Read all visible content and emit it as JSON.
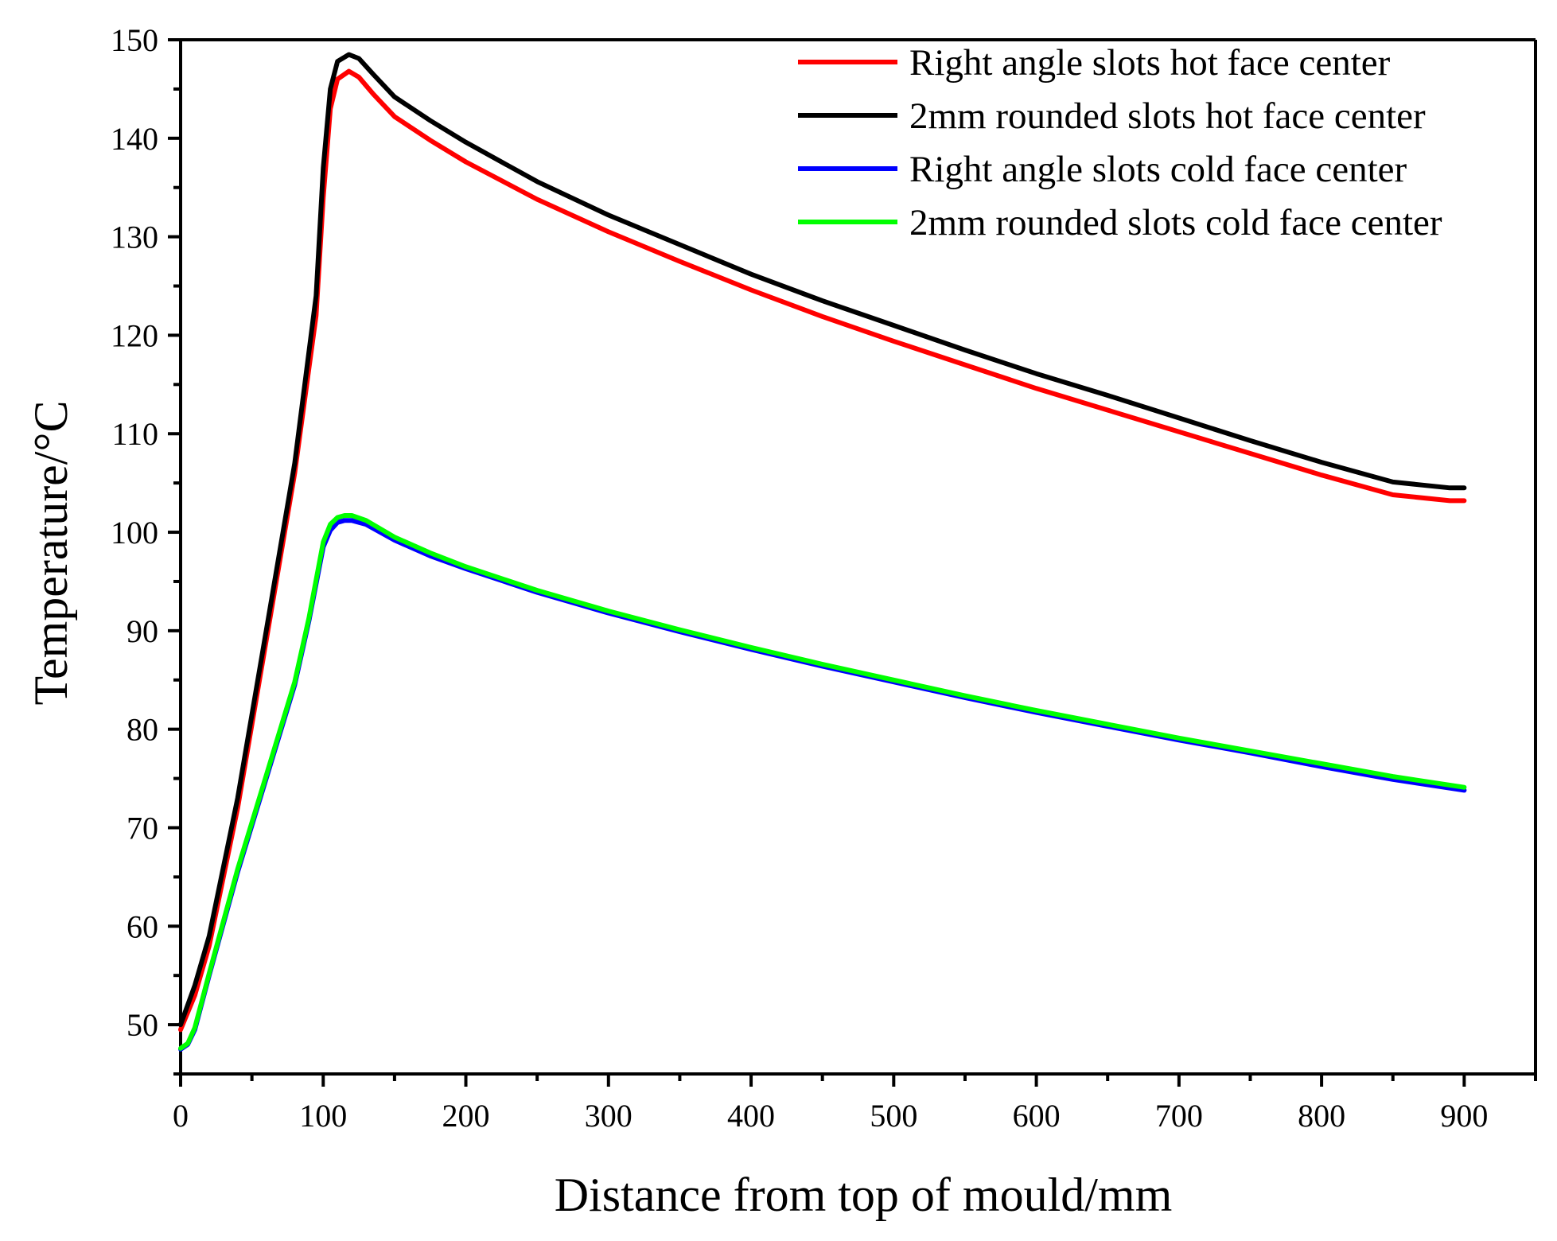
{
  "chart_data": {
    "type": "line",
    "title": "",
    "xlabel": "Distance from top of mould/mm",
    "ylabel": "Temperature/°C",
    "xlim": [
      0,
      950
    ],
    "ylim": [
      45,
      150
    ],
    "xticks": [
      0,
      100,
      200,
      300,
      400,
      500,
      600,
      700,
      800,
      900
    ],
    "yticks": [
      50,
      60,
      70,
      80,
      90,
      100,
      110,
      120,
      130,
      140,
      150
    ],
    "grid": false,
    "legend_position": "top-right",
    "series": [
      {
        "name": "Right angle slots hot face center",
        "color": "#ff0000",
        "x": [
          0,
          10,
          20,
          40,
          60,
          80,
          95,
          100,
          105,
          110,
          118,
          125,
          135,
          150,
          175,
          200,
          250,
          300,
          350,
          400,
          450,
          500,
          550,
          600,
          650,
          700,
          750,
          800,
          850,
          890,
          900
        ],
        "y": [
          49.5,
          53,
          58,
          72,
          89,
          106,
          122,
          134,
          143,
          146,
          146.8,
          146.2,
          144.5,
          142.2,
          139.8,
          137.6,
          133.8,
          130.5,
          127.5,
          124.6,
          121.9,
          119.4,
          117,
          114.6,
          112.4,
          110.2,
          108,
          105.8,
          103.8,
          103.2,
          103.2
        ]
      },
      {
        "name": "2mm rounded slots hot face center",
        "color": "#000000",
        "x": [
          0,
          10,
          20,
          40,
          60,
          80,
          95,
          100,
          105,
          110,
          118,
          125,
          135,
          150,
          175,
          200,
          250,
          300,
          350,
          400,
          450,
          500,
          550,
          600,
          650,
          700,
          750,
          800,
          850,
          890,
          900
        ],
        "y": [
          50,
          54,
          59,
          73,
          90,
          107,
          124,
          137,
          145,
          147.8,
          148.5,
          148.1,
          146.5,
          144.2,
          141.8,
          139.6,
          135.6,
          132.2,
          129.2,
          126.2,
          123.5,
          121,
          118.5,
          116.1,
          113.9,
          111.6,
          109.3,
          107.1,
          105.1,
          104.5,
          104.5
        ]
      },
      {
        "name": "Right angle slots cold face center",
        "color": "#0000ff",
        "x": [
          0,
          5,
          10,
          20,
          40,
          60,
          80,
          90,
          100,
          105,
          110,
          115,
          120,
          130,
          150,
          175,
          200,
          250,
          300,
          350,
          400,
          450,
          500,
          550,
          600,
          650,
          700,
          750,
          800,
          850,
          900
        ],
        "y": [
          47.5,
          48,
          49.5,
          55,
          65.5,
          75,
          84.5,
          91,
          98.5,
          100.2,
          101,
          101.2,
          101.2,
          100.8,
          99.2,
          97.6,
          96.3,
          93.9,
          91.8,
          89.9,
          88.1,
          86.4,
          84.8,
          83.2,
          81.7,
          80.3,
          78.9,
          77.6,
          76.2,
          74.9,
          73.8
        ]
      },
      {
        "name": "2mm rounded slots cold face center",
        "color": "#00ff00",
        "x": [
          0,
          5,
          10,
          20,
          40,
          60,
          80,
          90,
          100,
          105,
          110,
          115,
          120,
          130,
          150,
          175,
          200,
          250,
          300,
          350,
          400,
          450,
          500,
          550,
          600,
          650,
          700,
          750,
          800,
          850,
          900
        ],
        "y": [
          47.6,
          48.1,
          49.7,
          55.2,
          65.8,
          75.3,
          84.8,
          91.3,
          99,
          100.8,
          101.5,
          101.7,
          101.7,
          101.2,
          99.5,
          97.9,
          96.5,
          94.1,
          92,
          90.1,
          88.3,
          86.6,
          85,
          83.4,
          81.9,
          80.5,
          79.1,
          77.8,
          76.5,
          75.2,
          74.1
        ]
      }
    ]
  }
}
